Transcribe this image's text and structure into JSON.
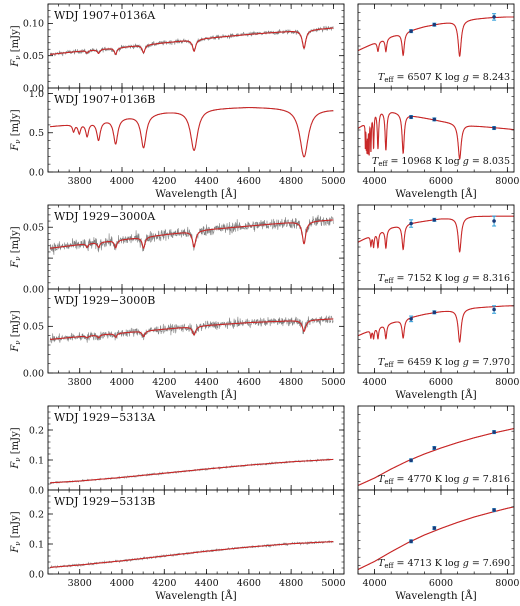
{
  "chart_data": [
    {
      "type": "line",
      "group": 0,
      "kind": "spectrum",
      "title": "WDJ 1907+0136A",
      "ylabel": "F_ν [mJy]",
      "xlabel": "",
      "xlim": [
        3650,
        5050
      ],
      "ylim": [
        0,
        0.13
      ],
      "yticks": [
        0.0,
        0.05,
        0.1
      ],
      "ytick_labels": [
        "0.00",
        "0.05",
        "0.10"
      ],
      "xticks": [],
      "xtick_labels": [],
      "series": [
        {
          "name": "",
          "x": [
            3660,
            3800,
            4000,
            4200,
            4400,
            4600,
            4800,
            5000
          ],
          "y": [
            0.052,
            0.057,
            0.063,
            0.07,
            0.077,
            0.083,
            0.088,
            0.093
          ]
        }
      ],
      "lines": [
        {
          "x": 3835,
          "depth": 0.004,
          "width": 6
        },
        {
          "x": 3889,
          "depth": 0.006,
          "width": 7
        },
        {
          "x": 3970,
          "depth": 0.01,
          "width": 7
        },
        {
          "x": 4102,
          "depth": 0.012,
          "width": 8
        },
        {
          "x": 4341,
          "depth": 0.018,
          "width": 9
        },
        {
          "x": 4861,
          "depth": 0.028,
          "width": 10
        }
      ],
      "noise": 0.0035
    },
    {
      "type": "line",
      "group": 0,
      "kind": "sed",
      "title": "",
      "xlim": [
        3500,
        8200
      ],
      "ylim": [
        0,
        0.13
      ],
      "xticks": [],
      "xtick_labels": [],
      "teff_label": "T_eff = 6507 K",
      "logg_label": "log g = 8.243",
      "model": {
        "x": [
          3500,
          4000,
          4500,
          5000,
          5500,
          6000,
          6500,
          7000,
          7500,
          8000,
          8200
        ],
        "y": [
          0.058,
          0.07,
          0.08,
          0.088,
          0.095,
          0.1,
          0.104,
          0.107,
          0.109,
          0.11,
          0.11
        ]
      },
      "lines": [
        {
          "x": 4102,
          "depth": 0.015,
          "width": 30
        },
        {
          "x": 4341,
          "depth": 0.02,
          "width": 30
        },
        {
          "x": 4861,
          "depth": 0.035,
          "width": 40
        },
        {
          "x": 6563,
          "depth": 0.055,
          "width": 55
        }
      ],
      "points": [
        {
          "x": 5100,
          "y": 0.088,
          "err": 0.002
        },
        {
          "x": 5800,
          "y": 0.098,
          "err": 0.002
        },
        {
          "x": 7600,
          "y": 0.11,
          "err": 0.005
        }
      ]
    },
    {
      "type": "line",
      "group": 0,
      "kind": "spectrum",
      "title": "WDJ 1907+0136B",
      "ylabel": "F_ν [mJy]",
      "xlabel": "Wavelength [Å]",
      "xlim": [
        3650,
        5050
      ],
      "ylim": [
        0,
        1.07
      ],
      "yticks": [
        0.0,
        0.5,
        1.0
      ],
      "ytick_labels": [
        "0.0",
        "0.5",
        "1.0"
      ],
      "xticks": [
        3800,
        4000,
        4200,
        4400,
        4600,
        4800,
        5000
      ],
      "xtick_labels": [
        "3800",
        "4000",
        "4200",
        "4400",
        "4600",
        "4800",
        "5000"
      ],
      "series": [
        {
          "name": "",
          "x": [
            3660,
            3800,
            4000,
            4200,
            4400,
            4600,
            4800,
            5000
          ],
          "y": [
            0.58,
            0.62,
            0.7,
            0.77,
            0.81,
            0.83,
            0.82,
            0.8
          ]
        }
      ],
      "lines": [
        {
          "x": 3771,
          "depth": 0.09,
          "width": 6
        },
        {
          "x": 3798,
          "depth": 0.12,
          "width": 7
        },
        {
          "x": 3835,
          "depth": 0.17,
          "width": 8
        },
        {
          "x": 3889,
          "depth": 0.24,
          "width": 10
        },
        {
          "x": 3970,
          "depth": 0.32,
          "width": 12
        },
        {
          "x": 4102,
          "depth": 0.42,
          "width": 15
        },
        {
          "x": 4341,
          "depth": 0.52,
          "width": 20
        },
        {
          "x": 4861,
          "depth": 0.62,
          "width": 24
        }
      ],
      "noise": 0.004
    },
    {
      "type": "line",
      "group": 0,
      "kind": "sed",
      "title": "",
      "xlim": [
        3500,
        8200
      ],
      "ylim": [
        0,
        1.07
      ],
      "xticks": [
        4000,
        6000,
        8000
      ],
      "xtick_labels": [
        "4000",
        "6000",
        "8000"
      ],
      "xlabel": "Wavelength [Å]",
      "teff_label": "T_eff = 10968 K",
      "logg_label": "log g = 8.035",
      "model": {
        "x": [
          3500,
          3700,
          3850,
          4000,
          4500,
          5000,
          5500,
          6000,
          6500,
          7000,
          7500,
          8000,
          8200
        ],
        "y": [
          0.56,
          0.62,
          0.74,
          0.8,
          0.78,
          0.73,
          0.69,
          0.65,
          0.62,
          0.59,
          0.57,
          0.55,
          0.54
        ]
      },
      "lines": [
        {
          "x": 3720,
          "depth": 0.3,
          "width": 6
        },
        {
          "x": 3750,
          "depth": 0.32,
          "width": 7
        },
        {
          "x": 3771,
          "depth": 0.35,
          "width": 8
        },
        {
          "x": 3798,
          "depth": 0.4,
          "width": 9
        },
        {
          "x": 3835,
          "depth": 0.45,
          "width": 10
        },
        {
          "x": 3889,
          "depth": 0.45,
          "width": 14
        },
        {
          "x": 3970,
          "depth": 0.45,
          "width": 18
        },
        {
          "x": 4102,
          "depth": 0.48,
          "width": 25
        },
        {
          "x": 4341,
          "depth": 0.5,
          "width": 30
        },
        {
          "x": 4861,
          "depth": 0.5,
          "width": 38
        },
        {
          "x": 6563,
          "depth": 0.45,
          "width": 55
        }
      ],
      "points": [
        {
          "x": 5100,
          "y": 0.7,
          "err": 0.012
        },
        {
          "x": 5800,
          "y": 0.67,
          "err": 0.012
        },
        {
          "x": 7600,
          "y": 0.56,
          "err": 0.012
        }
      ]
    },
    {
      "type": "line",
      "group": 1,
      "kind": "spectrum",
      "title": "WDJ 1929−3000A",
      "ylabel": "F_ν [mJy]",
      "xlabel": "",
      "xlim": [
        3650,
        5050
      ],
      "ylim": [
        0,
        0.068
      ],
      "yticks": [
        0.0,
        0.025,
        0.05
      ],
      "ytick_labels": [
        "0.00",
        "",
        "0.05"
      ],
      "xticks": [],
      "xtick_labels": [],
      "series": [
        {
          "name": "",
          "x": [
            3660,
            3800,
            4000,
            4200,
            4400,
            4600,
            4800,
            5000
          ],
          "y": [
            0.033,
            0.036,
            0.04,
            0.044,
            0.048,
            0.051,
            0.054,
            0.056
          ]
        }
      ],
      "lines": [
        {
          "x": 3835,
          "depth": 0.003,
          "width": 6
        },
        {
          "x": 3889,
          "depth": 0.004,
          "width": 7
        },
        {
          "x": 3970,
          "depth": 0.006,
          "width": 7
        },
        {
          "x": 4102,
          "depth": 0.009,
          "width": 8
        },
        {
          "x": 4341,
          "depth": 0.013,
          "width": 9
        },
        {
          "x": 4861,
          "depth": 0.018,
          "width": 10
        }
      ],
      "noise": 0.0045
    },
    {
      "type": "line",
      "group": 1,
      "kind": "sed",
      "title": "",
      "xlim": [
        3500,
        8200
      ],
      "ylim": [
        0,
        0.068
      ],
      "xticks": [],
      "xtick_labels": [],
      "teff_label": "T_eff = 7152 K",
      "logg_label": "log g = 8.316",
      "model": {
        "x": [
          3500,
          4000,
          4500,
          5000,
          5500,
          6000,
          6500,
          7000,
          7500,
          8000,
          8200
        ],
        "y": [
          0.038,
          0.045,
          0.05,
          0.053,
          0.055,
          0.057,
          0.058,
          0.059,
          0.059,
          0.059,
          0.059
        ]
      },
      "lines": [
        {
          "x": 3889,
          "depth": 0.008,
          "width": 20
        },
        {
          "x": 3970,
          "depth": 0.01,
          "width": 22
        },
        {
          "x": 4102,
          "depth": 0.012,
          "width": 25
        },
        {
          "x": 4341,
          "depth": 0.015,
          "width": 30
        },
        {
          "x": 4861,
          "depth": 0.02,
          "width": 40
        },
        {
          "x": 6563,
          "depth": 0.028,
          "width": 55
        }
      ],
      "points": [
        {
          "x": 5100,
          "y": 0.053,
          "err": 0.003
        },
        {
          "x": 5800,
          "y": 0.056,
          "err": 0.001
        },
        {
          "x": 7600,
          "y": 0.055,
          "err": 0.004
        }
      ]
    },
    {
      "type": "line",
      "group": 1,
      "kind": "spectrum",
      "title": "WDJ 1929−3000B",
      "ylabel": "F_ν [mJy]",
      "xlabel": "Wavelength [Å]",
      "xlim": [
        3650,
        5050
      ],
      "ylim": [
        0,
        0.09
      ],
      "yticks": [
        0.0,
        0.05
      ],
      "ytick_labels": [
        "0.00",
        "0.05"
      ],
      "xticks": [
        3800,
        4000,
        4200,
        4400,
        4600,
        4800,
        5000
      ],
      "xtick_labels": [
        "3800",
        "4000",
        "4200",
        "4400",
        "4600",
        "4800",
        "5000"
      ],
      "series": [
        {
          "name": "",
          "x": [
            3660,
            3800,
            4000,
            4200,
            4400,
            4600,
            4800,
            5000
          ],
          "y": [
            0.036,
            0.039,
            0.043,
            0.047,
            0.051,
            0.054,
            0.056,
            0.058
          ]
        }
      ],
      "lines": [
        {
          "x": 3835,
          "depth": 0.002,
          "width": 6
        },
        {
          "x": 3889,
          "depth": 0.003,
          "width": 7
        },
        {
          "x": 3970,
          "depth": 0.004,
          "width": 7
        },
        {
          "x": 4102,
          "depth": 0.006,
          "width": 8
        },
        {
          "x": 4341,
          "depth": 0.009,
          "width": 9
        },
        {
          "x": 4861,
          "depth": 0.012,
          "width": 10
        }
      ],
      "noise": 0.0045
    },
    {
      "type": "line",
      "group": 1,
      "kind": "sed",
      "title": "",
      "xlim": [
        3500,
        8200
      ],
      "ylim": [
        0,
        0.09
      ],
      "xticks": [
        4000,
        6000,
        8000
      ],
      "xtick_labels": [
        "4000",
        "6000",
        "8000"
      ],
      "xlabel": "Wavelength [Å]",
      "teff_label": "T_eff = 6459 K",
      "logg_label": "log g = 7.970",
      "model": {
        "x": [
          3500,
          4000,
          4500,
          5000,
          5500,
          6000,
          6500,
          7000,
          7500,
          8000,
          8200
        ],
        "y": [
          0.04,
          0.048,
          0.054,
          0.059,
          0.063,
          0.066,
          0.068,
          0.07,
          0.071,
          0.072,
          0.072
        ]
      },
      "lines": [
        {
          "x": 3889,
          "depth": 0.008,
          "width": 20
        },
        {
          "x": 3970,
          "depth": 0.01,
          "width": 22
        },
        {
          "x": 4102,
          "depth": 0.012,
          "width": 25
        },
        {
          "x": 4341,
          "depth": 0.015,
          "width": 30
        },
        {
          "x": 4861,
          "depth": 0.02,
          "width": 40
        },
        {
          "x": 6563,
          "depth": 0.035,
          "width": 55
        }
      ],
      "points": [
        {
          "x": 5100,
          "y": 0.058,
          "err": 0.003
        },
        {
          "x": 5800,
          "y": 0.065,
          "err": 0.001
        },
        {
          "x": 7600,
          "y": 0.068,
          "err": 0.004
        }
      ]
    },
    {
      "type": "line",
      "group": 2,
      "kind": "spectrum",
      "title": "WDJ 1929−5313A",
      "ylabel": "F_ν [mJy]",
      "xlabel": "",
      "xlim": [
        3650,
        5050
      ],
      "ylim": [
        0,
        0.28
      ],
      "yticks": [
        0.0,
        0.1,
        0.2
      ],
      "ytick_labels": [
        "0.0",
        "0.1",
        "0.2"
      ],
      "xticks": [],
      "xtick_labels": [],
      "series": [
        {
          "name": "",
          "x": [
            3660,
            3800,
            4000,
            4200,
            4400,
            4600,
            4800,
            5000
          ],
          "y": [
            0.024,
            0.03,
            0.042,
            0.056,
            0.07,
            0.083,
            0.094,
            0.102
          ]
        }
      ],
      "lines": [],
      "noise": 0.003
    },
    {
      "type": "line",
      "group": 2,
      "kind": "sed",
      "title": "",
      "xlim": [
        3500,
        8200
      ],
      "ylim": [
        0,
        0.28
      ],
      "xticks": [],
      "xtick_labels": [],
      "teff_label": "T_eff = 4770 K",
      "logg_label": "log g = 7.816",
      "model": {
        "x": [
          3500,
          4000,
          4500,
          5000,
          5500,
          6000,
          6500,
          7000,
          7500,
          8000,
          8200
        ],
        "y": [
          0.015,
          0.04,
          0.07,
          0.097,
          0.12,
          0.14,
          0.158,
          0.174,
          0.188,
          0.2,
          0.205
        ]
      },
      "lines": [],
      "points": [
        {
          "x": 5100,
          "y": 0.099,
          "err": 0.003
        },
        {
          "x": 5800,
          "y": 0.14,
          "err": 0.003
        },
        {
          "x": 7600,
          "y": 0.193,
          "err": 0.004
        }
      ]
    },
    {
      "type": "line",
      "group": 2,
      "kind": "spectrum",
      "title": "WDJ 1929−5313B",
      "ylabel": "F_ν [mJy]",
      "xlabel": "Wavelength [Å]",
      "xlim": [
        3650,
        5050
      ],
      "ylim": [
        0,
        0.28
      ],
      "yticks": [
        0.0,
        0.1,
        0.2
      ],
      "ytick_labels": [
        "0.0",
        "0.1",
        "0.2"
      ],
      "xticks": [
        3800,
        4000,
        4200,
        4400,
        4600,
        4800,
        5000
      ],
      "xtick_labels": [
        "3800",
        "4000",
        "4200",
        "4400",
        "4600",
        "4800",
        "5000"
      ],
      "series": [
        {
          "name": "",
          "x": [
            3660,
            3800,
            4000,
            4200,
            4400,
            4600,
            4800,
            5000
          ],
          "y": [
            0.022,
            0.03,
            0.044,
            0.06,
            0.076,
            0.09,
            0.101,
            0.108
          ]
        }
      ],
      "lines": [],
      "noise": 0.0035
    },
    {
      "type": "line",
      "group": 2,
      "kind": "sed",
      "title": "",
      "xlim": [
        3500,
        8200
      ],
      "ylim": [
        0,
        0.28
      ],
      "xticks": [
        4000,
        6000,
        8000
      ],
      "xtick_labels": [
        "4000",
        "6000",
        "8000"
      ],
      "xlabel": "Wavelength [Å]",
      "teff_label": "T_eff = 4713 K",
      "logg_label": "log g = 7.690",
      "model": {
        "x": [
          3500,
          4000,
          4500,
          5000,
          5500,
          6000,
          6500,
          7000,
          7500,
          8000,
          8200
        ],
        "y": [
          0.015,
          0.042,
          0.074,
          0.104,
          0.13,
          0.152,
          0.172,
          0.19,
          0.205,
          0.219,
          0.224
        ]
      },
      "lines": [],
      "points": [
        {
          "x": 5100,
          "y": 0.109,
          "err": 0.003
        },
        {
          "x": 5800,
          "y": 0.153,
          "err": 0.003
        },
        {
          "x": 7600,
          "y": 0.213,
          "err": 0.004
        }
      ]
    }
  ],
  "colors": {
    "observed": "#808080",
    "model": "#c82828",
    "points": "#1a3b7a",
    "errorbar": "#2a9cd8",
    "frame": "#111111"
  }
}
